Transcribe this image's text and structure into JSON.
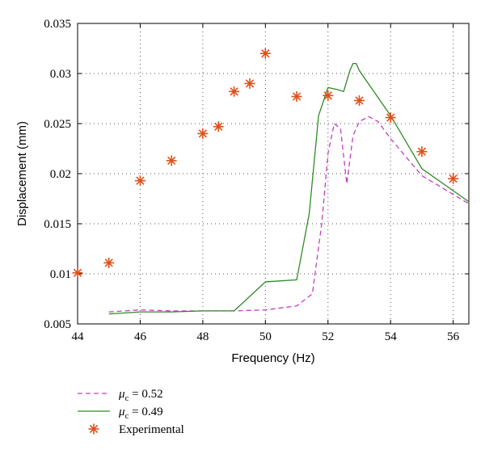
{
  "chart_data": {
    "type": "line",
    "xlabel": "Frequency (Hz)",
    "ylabel": "Displacement (mm)",
    "xlim": [
      44,
      56.5
    ],
    "ylim": [
      0.005,
      0.035
    ],
    "x_ticks": [
      44,
      46,
      48,
      50,
      52,
      54,
      56
    ],
    "x_tick_labels": [
      "44",
      "46",
      "48",
      "50",
      "52",
      "54",
      "56"
    ],
    "y_ticks": [
      0.005,
      0.01,
      0.015,
      0.02,
      0.025,
      0.03,
      0.035
    ],
    "y_tick_labels": [
      "0.005",
      "0.01",
      "0.015",
      "0.02",
      "0.025",
      "0.03",
      "0.035"
    ],
    "grid": true,
    "legend_position": "below-left",
    "series": [
      {
        "name": "0.52",
        "legend_symbol": "μ",
        "legend_subscript": "c",
        "legend_eq": " = ",
        "style": "dashed",
        "color": "#c040c0",
        "x": [
          45,
          46,
          47,
          48,
          49,
          50,
          51,
          51.5,
          51.8,
          52.0,
          52.2,
          52.4,
          52.6,
          52.8,
          53.0,
          53.3,
          53.6,
          54.0,
          55.0,
          56.5
        ],
        "y": [
          0.0062,
          0.0064,
          0.0063,
          0.0063,
          0.0063,
          0.0064,
          0.0068,
          0.008,
          0.015,
          0.022,
          0.025,
          0.0245,
          0.019,
          0.0238,
          0.0252,
          0.0257,
          0.0252,
          0.0235,
          0.0198,
          0.017
        ]
      },
      {
        "name": "0.49",
        "legend_symbol": "μ",
        "legend_subscript": "c",
        "legend_eq": " = ",
        "style": "solid",
        "color": "#2e8b22",
        "x": [
          45,
          46,
          47,
          48,
          49,
          50,
          51,
          51.4,
          51.7,
          52.0,
          52.3,
          52.5,
          52.7,
          52.8,
          52.9,
          53.0,
          53.4,
          54.0,
          55.0,
          56.5
        ],
        "y": [
          0.006,
          0.0062,
          0.0062,
          0.0063,
          0.0063,
          0.0092,
          0.0094,
          0.016,
          0.0258,
          0.0286,
          0.0284,
          0.0282,
          0.0303,
          0.031,
          0.031,
          0.0303,
          0.0285,
          0.0258,
          0.0205,
          0.0172
        ]
      },
      {
        "name": "Experimental",
        "style": "markers",
        "marker": "asterisk",
        "color": "#e0501a",
        "x": [
          44,
          45,
          46,
          47,
          48,
          48.5,
          49,
          49.5,
          50,
          51,
          52,
          53,
          54,
          55,
          56
        ],
        "y": [
          0.0101,
          0.0111,
          0.0193,
          0.0213,
          0.024,
          0.0247,
          0.0282,
          0.029,
          0.032,
          0.0277,
          0.0278,
          0.0273,
          0.0256,
          0.0222,
          0.0195
        ]
      }
    ]
  }
}
